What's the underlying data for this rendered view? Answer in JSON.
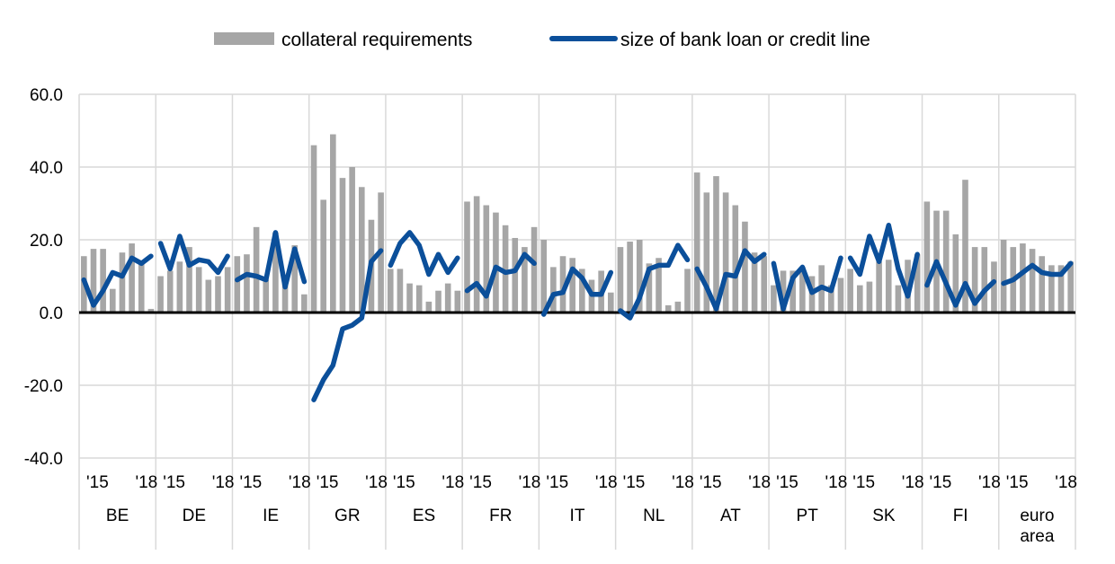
{
  "chart_data": {
    "type": "bar",
    "ylim": [
      -40,
      60
    ],
    "yticks": [
      60,
      40,
      20,
      0,
      -20,
      -40
    ],
    "ytick_labels": [
      "60.0",
      "40.0",
      "20.0",
      "0.0",
      "-20.0",
      "-40.0"
    ],
    "grid": "horizontal",
    "legend_position": "top",
    "period_start_label": "'15",
    "period_end_label": "'18",
    "colors": {
      "bars": "#a6a6a6",
      "line": "#0b4f9a",
      "zero_line": "#000000",
      "grid": "#d9d9d9"
    },
    "series": [
      {
        "name": "collateral requirements",
        "kind": "bar"
      },
      {
        "name": "size of bank loan or credit line",
        "kind": "line"
      }
    ],
    "groups": [
      {
        "label": [
          "BE"
        ],
        "bars": [
          15.5,
          17.5,
          17.5,
          6.5,
          16.5,
          19.0,
          13.5,
          1.0
        ],
        "line": [
          9.0,
          2.0,
          6.0,
          11.0,
          10.0,
          15.0,
          13.5,
          15.5
        ]
      },
      {
        "label": [
          "DE"
        ],
        "bars": [
          10.0,
          11.5,
          14.0,
          18.0,
          12.5,
          9.0,
          10.0,
          12.5
        ],
        "line": [
          19.0,
          12.0,
          21.0,
          13.0,
          14.5,
          14.0,
          11.0,
          15.5
        ]
      },
      {
        "label": [
          "IE"
        ],
        "bars": [
          15.5,
          16.0,
          23.5,
          9.0,
          22.0,
          8.0,
          18.5,
          5.0
        ],
        "line": [
          9.0,
          10.5,
          10.0,
          9.0,
          22.0,
          7.0,
          17.5,
          8.5
        ]
      },
      {
        "label": [
          "GR"
        ],
        "bars": [
          46.0,
          31.0,
          49.0,
          37.0,
          40.0,
          34.5,
          25.5,
          33.0
        ],
        "line": [
          -24.0,
          -18.5,
          -14.5,
          -4.5,
          -3.5,
          -1.5,
          14.0,
          17.0
        ]
      },
      {
        "label": [
          "ES"
        ],
        "bars": [
          12.0,
          12.0,
          8.0,
          7.5,
          3.0,
          6.0,
          8.0,
          6.0
        ],
        "line": [
          13.0,
          19.0,
          22.0,
          18.5,
          10.5,
          16.0,
          11.0,
          15.0
        ]
      },
      {
        "label": [
          "FR"
        ],
        "bars": [
          30.5,
          32.0,
          29.5,
          27.5,
          24.0,
          20.5,
          18.0,
          23.5
        ],
        "line": [
          6.0,
          8.0,
          4.5,
          12.5,
          11.0,
          11.5,
          16.0,
          13.5
        ]
      },
      {
        "label": [
          "IT"
        ],
        "bars": [
          20.0,
          12.5,
          15.5,
          15.0,
          12.0,
          9.0,
          11.5,
          5.5
        ],
        "line": [
          -0.5,
          5.0,
          5.5,
          12.0,
          9.5,
          5.0,
          5.0,
          11.0
        ]
      },
      {
        "label": [
          "NL"
        ],
        "bars": [
          18.0,
          19.5,
          20.0,
          13.5,
          15.0,
          2.0,
          3.0,
          12.0
        ],
        "line": [
          0.5,
          -1.5,
          4.0,
          12.0,
          13.0,
          13.0,
          18.5,
          14.5
        ]
      },
      {
        "label": [
          "AT"
        ],
        "bars": [
          38.5,
          33.0,
          37.5,
          33.0,
          29.5,
          25.0,
          16.5,
          15.5
        ],
        "line": [
          12.0,
          7.0,
          1.0,
          10.5,
          10.0,
          17.0,
          14.0,
          16.0
        ]
      },
      {
        "label": [
          "PT"
        ],
        "bars": [
          7.5,
          11.5,
          11.5,
          12.5,
          10.0,
          13.0,
          7.5,
          9.5
        ],
        "line": [
          13.5,
          1.0,
          9.5,
          12.5,
          5.5,
          7.0,
          6.0,
          15.0
        ]
      },
      {
        "label": [
          "SK"
        ],
        "bars": [
          12.0,
          7.5,
          8.5,
          14.0,
          14.5,
          7.5,
          14.5,
          16.0
        ],
        "line": [
          15.0,
          10.5,
          21.0,
          14.0,
          24.0,
          12.0,
          4.5,
          16.0
        ]
      },
      {
        "label": [
          "FI"
        ],
        "bars": [
          30.5,
          28.0,
          28.0,
          21.5,
          36.5,
          18.0,
          18.0,
          14.0
        ],
        "line": [
          7.5,
          14.0,
          8.0,
          2.0,
          8.0,
          2.5,
          6.0,
          8.5
        ]
      },
      {
        "label": [
          "euro",
          "area"
        ],
        "bars": [
          20.0,
          18.0,
          19.0,
          17.5,
          15.5,
          13.0,
          13.0,
          14.0
        ],
        "line": [
          8.0,
          9.0,
          11.0,
          13.0,
          11.0,
          10.5,
          10.5,
          13.5
        ]
      }
    ]
  }
}
